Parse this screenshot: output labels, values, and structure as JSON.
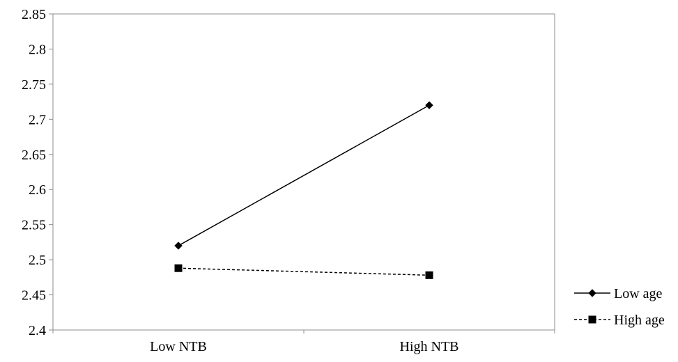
{
  "chart_data": {
    "type": "line",
    "categories": [
      "Low NTB",
      "High NTB"
    ],
    "series": [
      {
        "name": "Low age",
        "values": [
          2.52,
          2.72
        ],
        "line_style": "solid",
        "marker": "diamond",
        "color": "#000000"
      },
      {
        "name": "High age",
        "values": [
          2.488,
          2.478
        ],
        "line_style": "dashed",
        "marker": "square",
        "color": "#000000"
      }
    ],
    "y_ticks": [
      "2.4",
      "2.45",
      "2.5",
      "2.55",
      "2.6",
      "2.65",
      "2.7",
      "2.75",
      "2.8",
      "2.85"
    ],
    "ylim": [
      2.4,
      2.85
    ],
    "title": "",
    "xlabel": "",
    "ylabel": "",
    "grid": false,
    "legend_position": "right-bottom"
  }
}
